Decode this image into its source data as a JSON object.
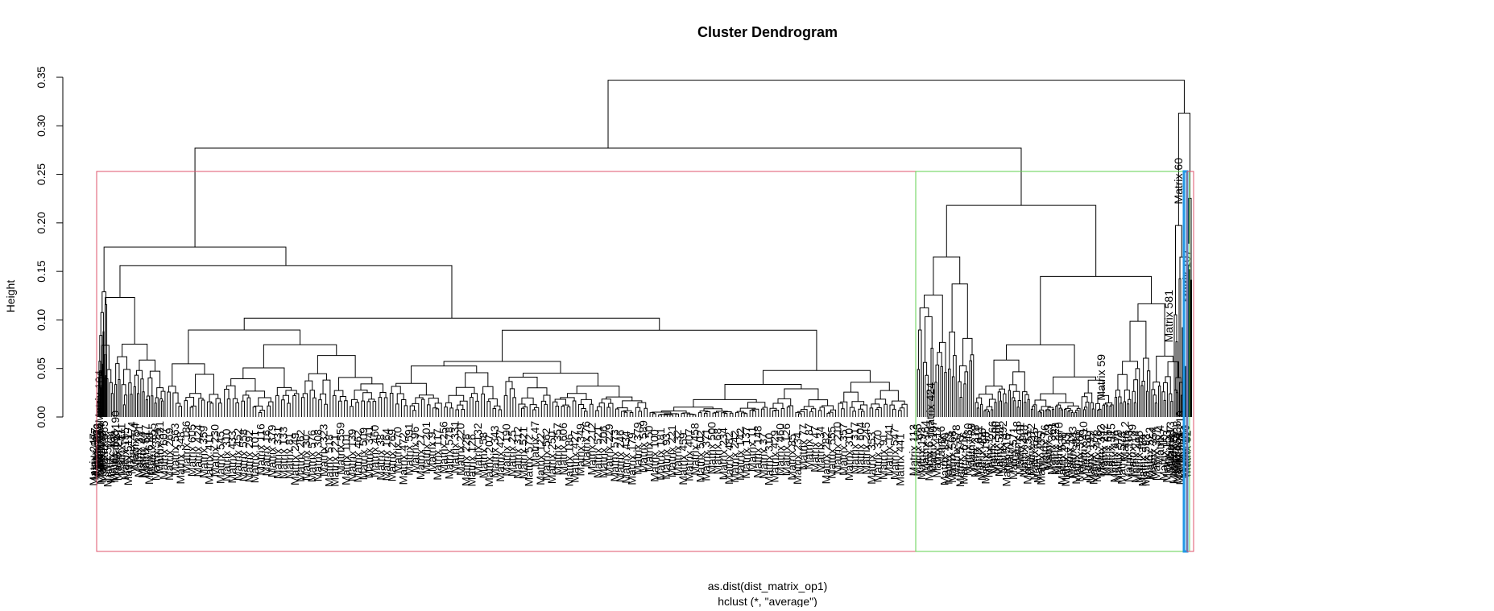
{
  "chart_data": {
    "type": "dendrogram",
    "title": "Cluster Dendrogram",
    "ylabel": "Height",
    "xlabel": "as.dist(dist_matrix_op1)",
    "sub": "hclust (*, \"average\")",
    "ylim": [
      0,
      0.35
    ],
    "yticks": [
      0.0,
      0.05,
      0.1,
      0.15,
      0.2,
      0.25,
      0.3,
      0.35
    ],
    "ytick_labels": [
      "0.00",
      "0.05",
      "0.10",
      "0.15",
      "0.20",
      "0.25",
      "0.30",
      "0.35"
    ],
    "cut_height": 0.253,
    "rect_colors": [
      "#DF536B",
      "#61D04F",
      "#2297E6",
      "#DF536B"
    ],
    "leaf_labels_legible": [
      "Matrix 60",
      "Matrix 107",
      "Matrix 581",
      "Matrix 59",
      "Matrix 424",
      "Matrix 219",
      "Matrix 104",
      "Matrix 190"
    ],
    "top_merges": [
      {
        "height": 0.347,
        "joins": "left-block + right-block"
      },
      {
        "height": 0.277,
        "joins": "cluster-1 + cluster-2"
      },
      {
        "height": 0.313,
        "joins": "cluster-3 + cluster-4"
      },
      {
        "height": 0.175,
        "joins": "cluster-1 sub-block A + B"
      },
      {
        "height": 0.218,
        "joins": "cluster-2 sub-block A + B"
      }
    ]
  }
}
